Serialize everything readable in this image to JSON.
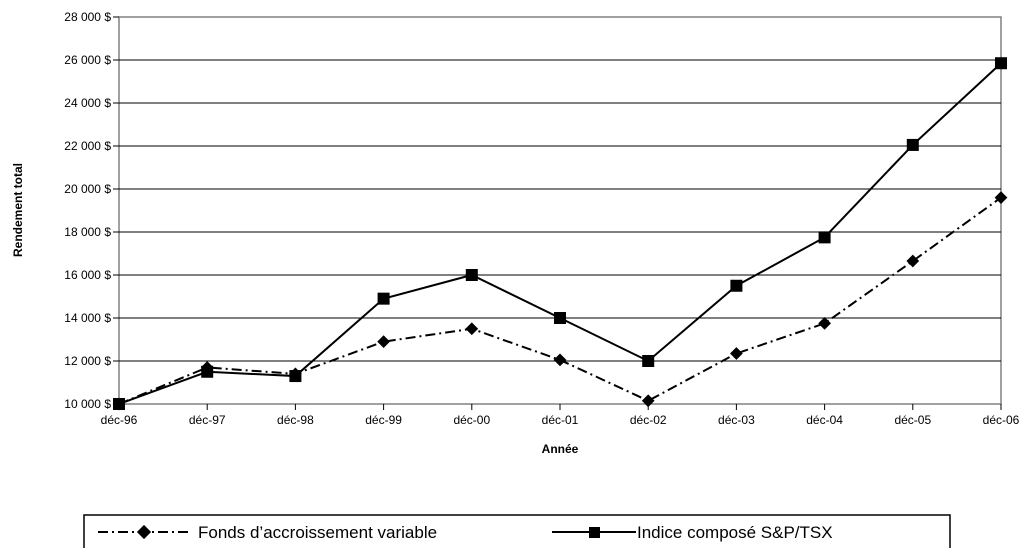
{
  "chart_data": {
    "type": "line",
    "xlabel": "Année",
    "ylabel": "Rendement total",
    "categories": [
      "déc-96",
      "déc-97",
      "déc-98",
      "déc-99",
      "déc-00",
      "déc-01",
      "déc-02",
      "déc-03",
      "déc-04",
      "déc-05",
      "déc-06"
    ],
    "ylim": [
      10000,
      28000
    ],
    "yticks": [
      10000,
      12000,
      14000,
      16000,
      18000,
      20000,
      22000,
      24000,
      26000,
      28000
    ],
    "ytick_labels": [
      "10 000 $",
      "12 000 $",
      "14 000 $",
      "16 000 $",
      "18 000 $",
      "20 000 $",
      "22 000 $",
      "24 000 $",
      "26 000 $",
      "28 000 $"
    ],
    "grid": "horizontal",
    "legend_position": "bottom",
    "series": [
      {
        "name": "Fonds d’accroissement variable",
        "marker": "diamond",
        "line_style": "dash-dot",
        "color": "#000000",
        "values": [
          10000,
          11700,
          11400,
          12900,
          13500,
          12050,
          10150,
          12350,
          13750,
          16650,
          19600
        ]
      },
      {
        "name": "Indice composé S&P/TSX",
        "marker": "square",
        "line_style": "solid",
        "color": "#000000",
        "values": [
          10000,
          11500,
          11300,
          14900,
          16000,
          14000,
          12000,
          15500,
          17750,
          22050,
          25850
        ]
      }
    ]
  }
}
